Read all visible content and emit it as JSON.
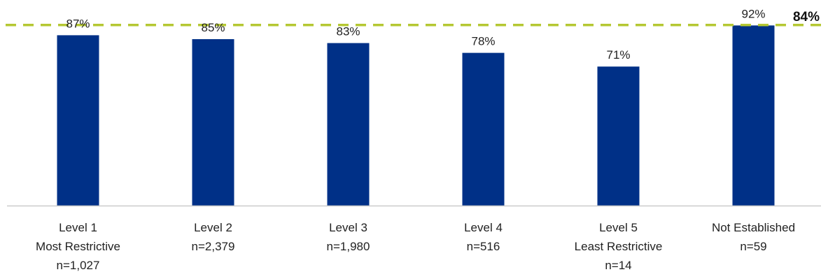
{
  "chart_data": {
    "type": "bar",
    "categories": [
      [
        "Level 1",
        "Most Restrictive",
        "n=1,027"
      ],
      [
        "Level 2",
        "n=2,379"
      ],
      [
        "Level 3",
        "n=1,980"
      ],
      [
        "Level 4",
        "n=516"
      ],
      [
        "Level 5",
        "Least Restrictive",
        "n=14"
      ],
      [
        "Not Established",
        "n=59"
      ]
    ],
    "values": [
      87,
      85,
      83,
      78,
      71,
      92
    ],
    "data_labels": [
      "87%",
      "85%",
      "83%",
      "78%",
      "71%",
      "92%"
    ],
    "reference_line": {
      "value": 84,
      "label": "84%",
      "color": "#b5c832",
      "style": "dashed"
    },
    "bar_color": "#003087",
    "axis_color": "#cccccc",
    "ylim": [
      0,
      100
    ],
    "grid": false,
    "legend": "none"
  }
}
